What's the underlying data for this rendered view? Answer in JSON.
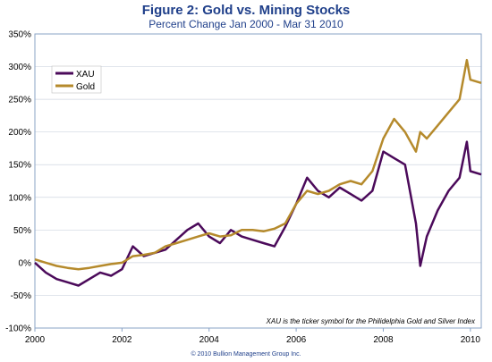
{
  "header": {
    "title": "Figure 2: Gold vs. Mining Stocks",
    "subtitle": "Percent Change Jan 2000 - Mar 31 2010"
  },
  "footer": {
    "credit": "© 2010 Bullion Management Group Inc."
  },
  "colors": {
    "xau": "#4b0a5a",
    "gold": "#b58a2c",
    "frame": "#8aa3c6",
    "grid": "#cfd6e0"
  },
  "chart_data": {
    "type": "line",
    "title": "Figure 2: Gold vs. Mining Stocks",
    "subtitle": "Percent Change Jan 2000 - Mar 31 2010",
    "xlabel": "",
    "ylabel": "",
    "xlim": [
      2000,
      2010.25
    ],
    "ylim": [
      -100,
      350
    ],
    "x_ticks": [
      2000,
      2002,
      2004,
      2006,
      2008,
      2010
    ],
    "x_tick_labels": [
      "2000",
      "2002",
      "2004",
      "2006",
      "2008",
      "2010"
    ],
    "y_ticks": [
      -100,
      -50,
      0,
      50,
      100,
      150,
      200,
      250,
      300,
      350
    ],
    "y_tick_labels": [
      "-100%",
      "-50%",
      "0%",
      "50%",
      "100%",
      "150%",
      "200%",
      "250%",
      "300%",
      "350%"
    ],
    "grid": true,
    "legend_position": "top-left",
    "annotation": "XAU is the ticker symbol for the Philidelphia Gold and Silver Index",
    "series": [
      {
        "name": "XAU",
        "color": "#4b0a5a",
        "x": [
          2000,
          2000.25,
          2000.5,
          2000.75,
          2001,
          2001.25,
          2001.5,
          2001.75,
          2002,
          2002.25,
          2002.5,
          2002.75,
          2003,
          2003.25,
          2003.5,
          2003.75,
          2004,
          2004.25,
          2004.5,
          2004.75,
          2005,
          2005.25,
          2005.5,
          2005.75,
          2006,
          2006.25,
          2006.5,
          2006.75,
          2007,
          2007.25,
          2007.5,
          2007.75,
          2008,
          2008.25,
          2008.5,
          2008.75,
          2008.85,
          2009,
          2009.25,
          2009.5,
          2009.75,
          2009.92,
          2010,
          2010.25
        ],
        "y": [
          0,
          -15,
          -25,
          -30,
          -35,
          -25,
          -15,
          -20,
          -10,
          25,
          10,
          15,
          20,
          35,
          50,
          60,
          40,
          30,
          50,
          40,
          35,
          30,
          25,
          55,
          90,
          130,
          110,
          100,
          115,
          105,
          95,
          110,
          170,
          160,
          150,
          60,
          -5,
          40,
          80,
          110,
          130,
          185,
          140,
          135
        ]
      },
      {
        "name": "Gold",
        "color": "#b58a2c",
        "x": [
          2000,
          2000.25,
          2000.5,
          2000.75,
          2001,
          2001.25,
          2001.5,
          2001.75,
          2002,
          2002.25,
          2002.5,
          2002.75,
          2003,
          2003.25,
          2003.5,
          2003.75,
          2004,
          2004.25,
          2004.5,
          2004.75,
          2005,
          2005.25,
          2005.5,
          2005.75,
          2006,
          2006.25,
          2006.5,
          2006.75,
          2007,
          2007.25,
          2007.5,
          2007.75,
          2008,
          2008.25,
          2008.5,
          2008.75,
          2008.85,
          2009,
          2009.25,
          2009.5,
          2009.75,
          2009.92,
          2010,
          2010.25
        ],
        "y": [
          5,
          0,
          -5,
          -8,
          -10,
          -8,
          -5,
          -2,
          0,
          10,
          12,
          15,
          25,
          30,
          35,
          40,
          45,
          40,
          42,
          50,
          50,
          48,
          52,
          60,
          90,
          110,
          105,
          110,
          120,
          125,
          120,
          140,
          190,
          220,
          200,
          170,
          200,
          190,
          210,
          230,
          250,
          310,
          280,
          275
        ]
      }
    ]
  }
}
